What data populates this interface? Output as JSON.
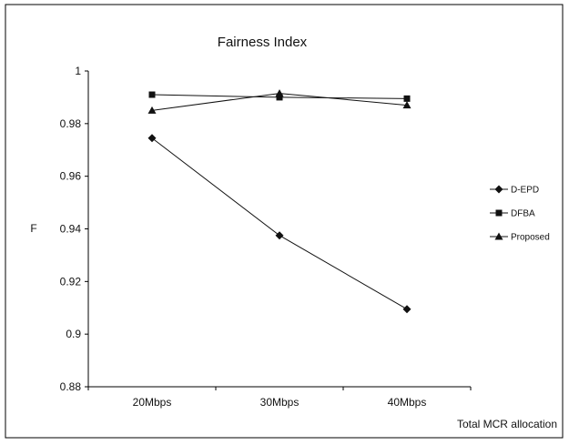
{
  "chart_data": {
    "type": "line",
    "title": "Fairness Index",
    "xlabel": "Total MCR allocation",
    "ylabel": "F",
    "categories": [
      "20Mbps",
      "30Mbps",
      "40Mbps"
    ],
    "ylim": [
      0.88,
      1.0
    ],
    "yticks": [
      "0.88",
      "0.9",
      "0.92",
      "0.94",
      "0.96",
      "0.98",
      "1"
    ],
    "grid": false,
    "legend_position": "right",
    "series": [
      {
        "name": "D-EPD",
        "marker": "diamond",
        "values": [
          0.9745,
          0.9375,
          0.9095
        ]
      },
      {
        "name": "DFBA",
        "marker": "square",
        "values": [
          0.991,
          0.99,
          0.9895
        ]
      },
      {
        "name": "Proposed",
        "marker": "triangle",
        "values": [
          0.985,
          0.9915,
          0.987
        ]
      }
    ],
    "colors": {
      "line": "#111111",
      "frame": "#000000"
    }
  }
}
